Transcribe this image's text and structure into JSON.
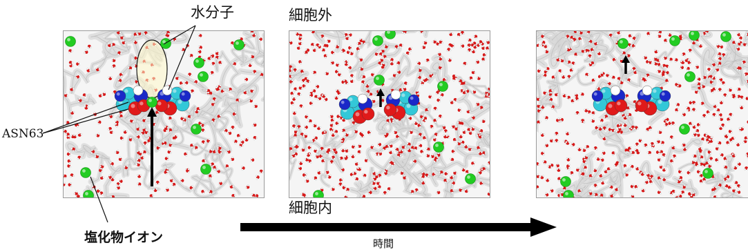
{
  "labels": {
    "water_molecule": "水分子",
    "extracellular": "細胞外",
    "asn63": "ASN63",
    "intracellular": "細胞内",
    "chloride_ion": "塩化物イオン",
    "time": "時間"
  },
  "colors": {
    "chloride": "#22cc22",
    "water_oxygen": "#d81818",
    "water_hydrogen": "#ffffff",
    "protein_ribbon": "#d7d7d7",
    "carbon": "#33c8d8",
    "nitrogen": "#1a28c8",
    "oxygen": "#e01a1a",
    "arrow": "#000000"
  },
  "snapshots": [
    {
      "index": 1,
      "water_density": "medium"
    },
    {
      "index": 2,
      "water_density": "high"
    },
    {
      "index": 3,
      "water_density": "high"
    }
  ]
}
